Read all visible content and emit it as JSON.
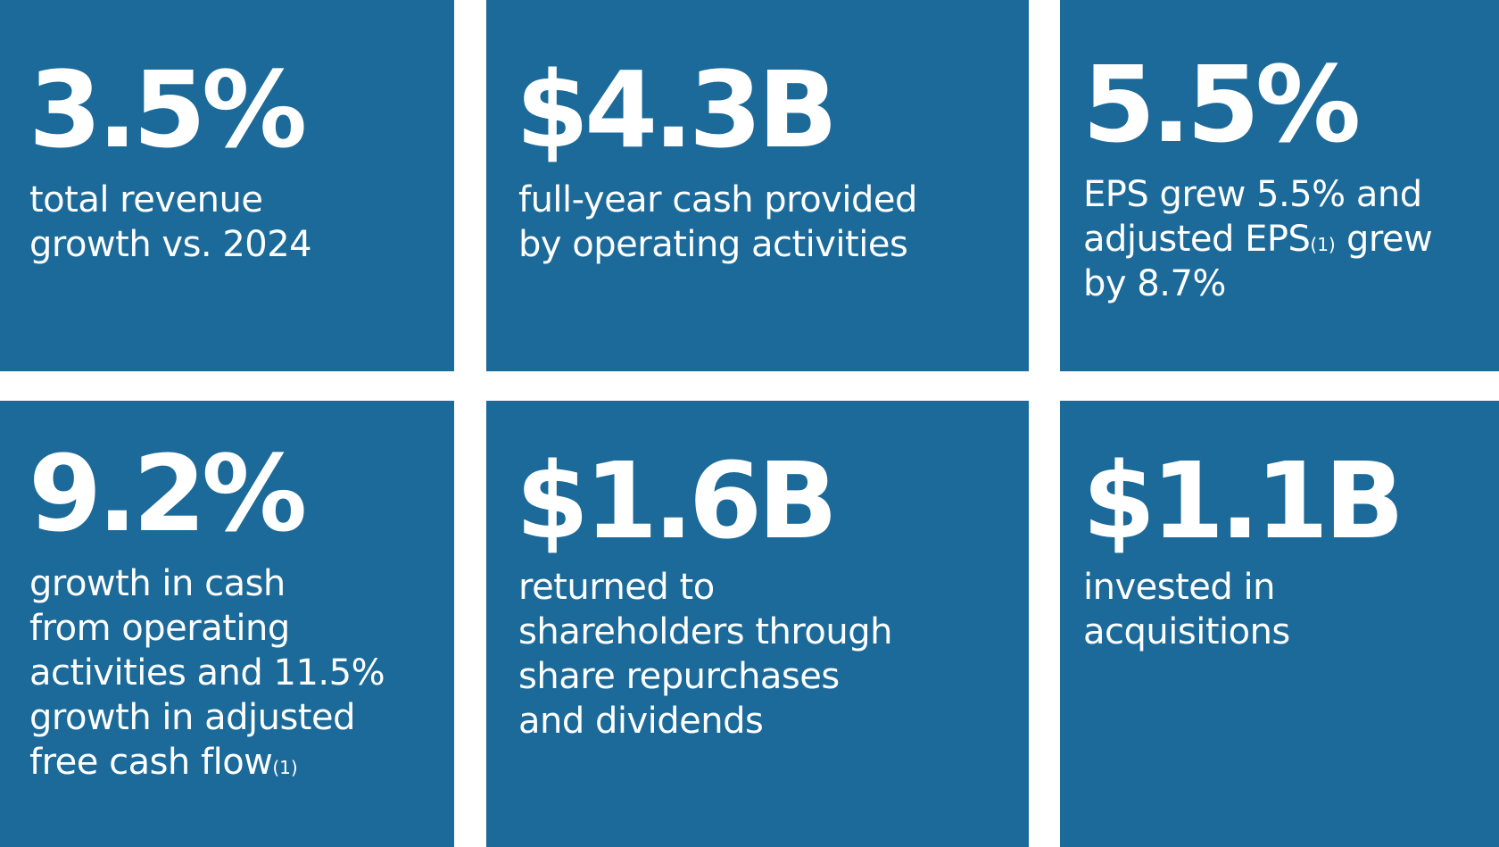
{
  "colors": {
    "tile_background": "#1b6a99",
    "text": "#ffffff",
    "gap": "#ffffff"
  },
  "tiles": [
    {
      "value": "3.5%",
      "lines": [
        "total revenue",
        "growth vs. 2024"
      ]
    },
    {
      "value": "$4.3B",
      "lines": [
        "full-year cash provided",
        "by operating activities"
      ]
    },
    {
      "value": "5.5%",
      "line1": "EPS grew 5.5% and",
      "line2_before": "adjusted EPS",
      "line2_footnote": "(1)",
      "line2_after": " grew",
      "line3": "by 8.7%"
    },
    {
      "value": "9.2%",
      "lines": [
        "growth in cash",
        "from operating",
        "activities and 11.5%",
        "growth in adjusted"
      ],
      "last_line": "free cash flow",
      "last_footnote": "(1)"
    },
    {
      "value": "$1.6B",
      "lines": [
        "returned to",
        "shareholders through",
        "share repurchases",
        "and dividends"
      ]
    },
    {
      "value": "$1.1B",
      "lines": [
        "invested in",
        "acquisitions"
      ]
    }
  ]
}
